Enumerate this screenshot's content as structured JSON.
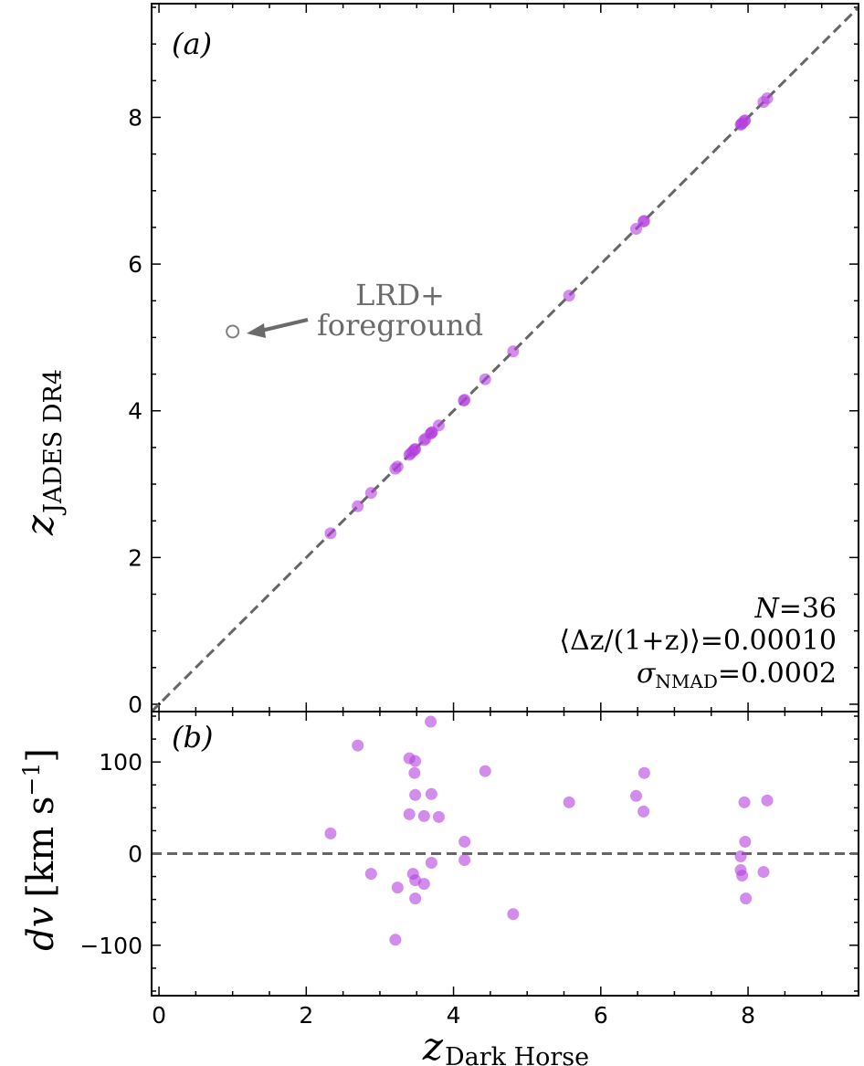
{
  "chart_data": [
    {
      "panel": "(a)",
      "type": "scatter",
      "xlabel": {
        "var": "z",
        "sub": "Dark Horse"
      },
      "ylabel": {
        "var": "z",
        "sub": "JADES DR4"
      },
      "xlim": [
        -0.1,
        9.5
      ],
      "ylim": [
        -0.1,
        9.55
      ],
      "xticks": [
        0,
        2,
        4,
        6,
        8
      ],
      "yticks": [
        0,
        2,
        4,
        6,
        8
      ],
      "one_to_one_line": true,
      "series": [
        {
          "name": "matched",
          "color": "#b43fe0",
          "points": [
            [
              2.33,
              2.33
            ],
            [
              2.7,
              2.7
            ],
            [
              2.88,
              2.88
            ],
            [
              3.21,
              3.21
            ],
            [
              3.24,
              3.24
            ],
            [
              3.4,
              3.4
            ],
            [
              3.42,
              3.42
            ],
            [
              3.45,
              3.45
            ],
            [
              3.47,
              3.47
            ],
            [
              3.48,
              3.48
            ],
            [
              3.6,
              3.6
            ],
            [
              3.62,
              3.62
            ],
            [
              3.69,
              3.69
            ],
            [
              3.7,
              3.7
            ],
            [
              3.71,
              3.71
            ],
            [
              3.8,
              3.8
            ],
            [
              4.14,
              4.14
            ],
            [
              4.15,
              4.15
            ],
            [
              4.43,
              4.43
            ],
            [
              4.81,
              4.81
            ],
            [
              5.57,
              5.57
            ],
            [
              6.48,
              6.48
            ],
            [
              6.58,
              6.58
            ],
            [
              6.59,
              6.59
            ],
            [
              7.9,
              7.9
            ],
            [
              7.91,
              7.91
            ],
            [
              7.92,
              7.92
            ],
            [
              7.95,
              7.95
            ],
            [
              7.96,
              7.96
            ],
            [
              8.21,
              8.21
            ],
            [
              8.26,
              8.26
            ]
          ]
        },
        {
          "name": "outlier",
          "color": "#808080",
          "points": [
            [
              1.0,
              5.08
            ]
          ]
        }
      ],
      "annotations": {
        "outlier_line1": "LRD+",
        "outlier_line2": "foreground",
        "n_label": "N",
        "n_value": "=36",
        "mean_label": "⟨Δz/(1+z)⟩",
        "mean_value": "=0.00010",
        "sigma_label": "σ",
        "sigma_sub": "NMAD",
        "sigma_value": "=0.0002"
      }
    },
    {
      "panel": "(b)",
      "type": "scatter",
      "ylabel": {
        "var": "dv",
        "unit": "[km s",
        "exp": "−1",
        "close": "]"
      },
      "xlim": [
        -0.1,
        9.5
      ],
      "ylim": [
        -155,
        155
      ],
      "xticks": [
        0,
        2,
        4,
        6,
        8
      ],
      "yticks": [
        -100,
        0,
        100
      ],
      "ytick_labels": [
        "−100",
        "0",
        "100"
      ],
      "xtick_labels": [
        "0",
        "2",
        "4",
        "6",
        "8"
      ],
      "zero_line": true,
      "series": [
        {
          "name": "velocity offset",
          "color": "#b43fe0",
          "points": [
            [
              2.33,
              22
            ],
            [
              2.7,
              118
            ],
            [
              2.88,
              -22
            ],
            [
              3.21,
              -94
            ],
            [
              3.24,
              -37
            ],
            [
              3.4,
              104
            ],
            [
              3.4,
              43
            ],
            [
              3.45,
              -22
            ],
            [
              3.47,
              88
            ],
            [
              3.48,
              101
            ],
            [
              3.48,
              64
            ],
            [
              3.48,
              -29
            ],
            [
              3.48,
              -49
            ],
            [
              3.6,
              41
            ],
            [
              3.6,
              -33
            ],
            [
              3.69,
              144
            ],
            [
              3.7,
              65
            ],
            [
              3.7,
              -10
            ],
            [
              3.8,
              40
            ],
            [
              4.15,
              13
            ],
            [
              4.15,
              -7
            ],
            [
              4.43,
              90
            ],
            [
              4.81,
              -66
            ],
            [
              5.57,
              56
            ],
            [
              6.48,
              63
            ],
            [
              6.58,
              46
            ],
            [
              6.59,
              88
            ],
            [
              7.9,
              -3
            ],
            [
              7.9,
              -18
            ],
            [
              7.92,
              -24
            ],
            [
              7.95,
              56
            ],
            [
              7.96,
              13
            ],
            [
              7.97,
              -49
            ],
            [
              8.21,
              -20
            ],
            [
              8.26,
              58
            ]
          ]
        }
      ]
    }
  ]
}
